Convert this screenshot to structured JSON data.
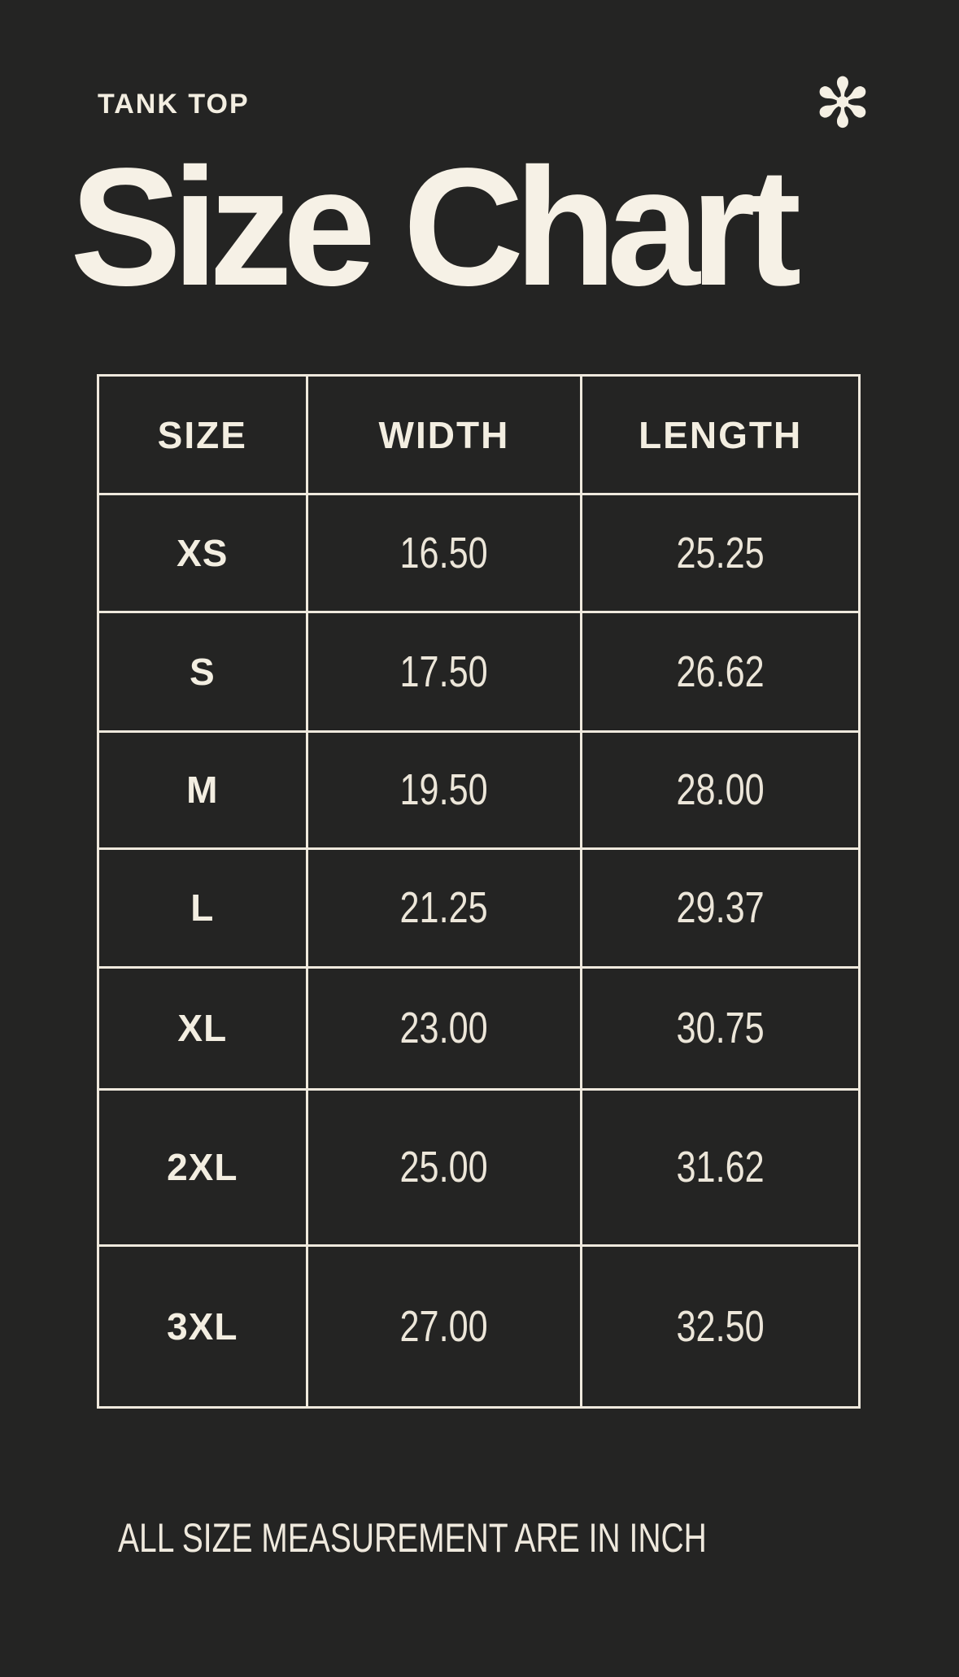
{
  "page": {
    "background": "#242423",
    "text_color": "#f3eee1"
  },
  "header": {
    "product_label": "TANK TOP",
    "title": "Size Chart",
    "asterisk_icon": "✻"
  },
  "table": {
    "columns": [
      "SIZE",
      "WIDTH",
      "LENGTH"
    ],
    "rows": [
      {
        "size": "XS",
        "width": "16.50",
        "length": "25.25"
      },
      {
        "size": "S",
        "width": "17.50",
        "length": "26.62"
      },
      {
        "size": "M",
        "width": "19.50",
        "length": "28.00"
      },
      {
        "size": "L",
        "width": "21.25",
        "length": "29.37"
      },
      {
        "size": "XL",
        "width": "23.00",
        "length": "30.75"
      },
      {
        "size": "2XL",
        "width": "25.00",
        "length": "31.62"
      },
      {
        "size": "3XL",
        "width": "27.00",
        "length": "32.50"
      }
    ]
  },
  "footer": {
    "note": "ALL SIZE MEASUREMENT ARE IN INCH"
  },
  "chart_data": {
    "type": "table",
    "title": "Size Chart",
    "subtitle": "TANK TOP",
    "columns": [
      "SIZE",
      "WIDTH",
      "LENGTH"
    ],
    "rows": [
      [
        "XS",
        16.5,
        25.25
      ],
      [
        "S",
        17.5,
        26.62
      ],
      [
        "M",
        19.5,
        28.0
      ],
      [
        "L",
        21.25,
        29.37
      ],
      [
        "XL",
        23.0,
        30.75
      ],
      [
        "2XL",
        25.0,
        31.62
      ],
      [
        "3XL",
        27.0,
        32.5
      ]
    ],
    "units": "inch",
    "note": "ALL SIZE MEASUREMENT ARE IN INCH",
    "layout_hints": {
      "grid": "on",
      "style": "dark poster, cream lines and text"
    }
  }
}
